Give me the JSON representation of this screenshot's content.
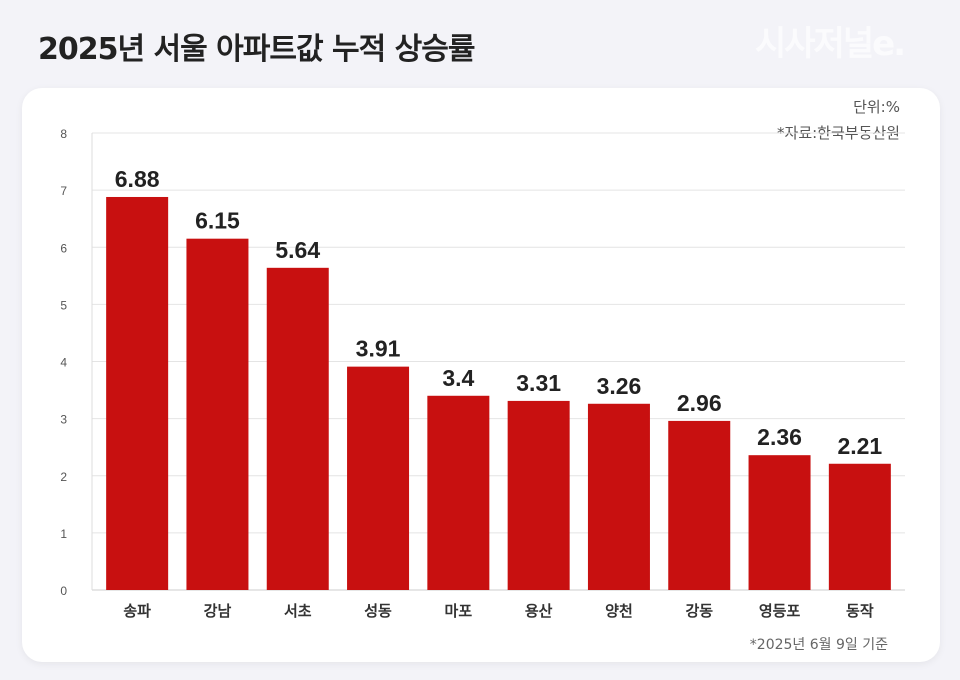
{
  "header": {
    "title": "2025년 서울 아파트값 누적 상승률",
    "logo": "시사저널e."
  },
  "chart_data": {
    "type": "bar",
    "title": "2025년 서울 아파트값 누적 상승률",
    "unit_label": "단위:%",
    "source": "*자료:한국부동산원",
    "footnote": "*2025년 6월 9일 기준",
    "categories": [
      "송파",
      "강남",
      "서초",
      "성동",
      "마포",
      "용산",
      "양천",
      "강동",
      "영등포",
      "동작"
    ],
    "values": [
      6.88,
      6.15,
      5.64,
      3.91,
      3.4,
      3.31,
      3.26,
      2.96,
      2.36,
      2.21
    ],
    "ylim": [
      0,
      8
    ],
    "yticks": [
      0,
      1,
      2,
      3,
      4,
      5,
      6,
      7,
      8
    ],
    "grid": true,
    "bar_color": "#c81010"
  }
}
